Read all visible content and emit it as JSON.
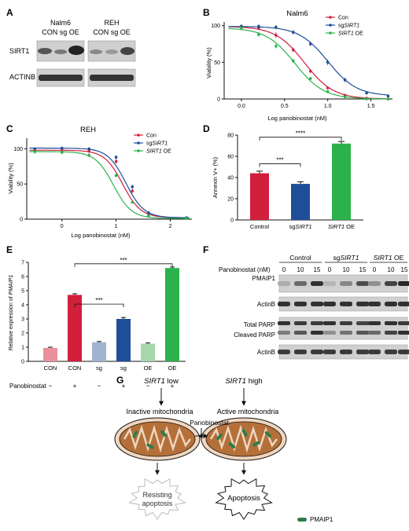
{
  "panels": {
    "A": {
      "letter": "A",
      "groups": [
        {
          "cell_line": "Nalm6",
          "lanes": "CON sg OE"
        },
        {
          "cell_line": "REH",
          "lanes": "CON sg OE"
        }
      ],
      "rows": [
        "SIRT1",
        "ACTINB"
      ]
    },
    "B": {
      "letter": "B"
    },
    "C": {
      "letter": "C"
    },
    "D": {
      "letter": "D"
    },
    "E": {
      "letter": "E"
    },
    "F": {
      "letter": "F",
      "treatment_label": "Panobinostat (nM)",
      "groups": [
        {
          "label": "Control",
          "italic_part": "",
          "suffix": ""
        },
        {
          "label": "sg",
          "italic_part": "SIRT1",
          "suffix": ""
        },
        {
          "label": "",
          "italic_part": "SIRT1",
          "suffix": " OE"
        }
      ],
      "doses": [
        "0",
        "10",
        "15",
        "0",
        "10",
        "15",
        "0",
        "10",
        "15"
      ],
      "rows": [
        "PMAIP1",
        "ActinB",
        "Total PARP",
        "Cleaved PARP",
        "ActinB"
      ]
    },
    "G": {
      "letter": "G",
      "left_top": {
        "italic": "SIRT1",
        "rest": " low"
      },
      "right_top": {
        "italic": "SIRT1",
        "rest": " high"
      },
      "left_state": "Inactive mitochondria",
      "right_state": "Active mitochondria",
      "center": "Panobinostat",
      "left_outcome_line1": "Resisting",
      "left_outcome_line2": "apoptosis",
      "right_outcome": "Apoptosis",
      "legend": "PMAIP1",
      "colors": {
        "mito_fill": "#b5703a",
        "mito_outer": "#f0d6bf",
        "pmaip1": "#2f7d4a"
      }
    }
  },
  "chart_data": [
    {
      "panel": "B",
      "type": "line",
      "title": "Nalm6",
      "xlabel": "Log panobinostat (nM)",
      "ylabel": "Viability (%)",
      "xlim": [
        -0.2,
        1.75
      ],
      "ylim": [
        0,
        105
      ],
      "xticks": [
        "0.0",
        "0.5",
        "1.0",
        "1.5"
      ],
      "yticks": [
        "0",
        "50",
        "100"
      ],
      "legend_position": "top-right",
      "series": [
        {
          "name": "Con",
          "italic_part": "",
          "suffix": "",
          "color": "#d21f3c",
          "x": [
            0.0,
            0.2,
            0.4,
            0.6,
            0.8,
            1.0,
            1.2,
            1.45,
            1.7
          ],
          "y": [
            99,
            97,
            87,
            67,
            38,
            15,
            5,
            1,
            0
          ],
          "err": [
            3,
            3,
            4,
            3,
            3,
            2,
            2,
            1,
            1
          ],
          "logec50": 0.73
        },
        {
          "name": "sg",
          "italic_part": "SIRT1",
          "suffix": "",
          "color": "#1f4e99",
          "x": [
            0.0,
            0.2,
            0.4,
            0.6,
            0.8,
            1.0,
            1.2,
            1.45,
            1.7
          ],
          "y": [
            99,
            99,
            98,
            91,
            75,
            50,
            26,
            8,
            4
          ],
          "err": [
            3,
            3,
            3,
            3,
            3,
            4,
            3,
            2,
            2
          ],
          "logec50": 1.0
        },
        {
          "name": "",
          "italic_part": "SIRT1",
          "suffix": " OE",
          "color": "#2bb24c",
          "x": [
            0.0,
            0.2,
            0.4,
            0.6,
            0.8,
            1.0,
            1.2,
            1.45,
            1.7
          ],
          "y": [
            97,
            88,
            72,
            52,
            28,
            10,
            3,
            0,
            0
          ],
          "err": [
            2,
            3,
            3,
            3,
            2,
            2,
            1,
            1,
            1
          ],
          "logec50": 0.62
        }
      ]
    },
    {
      "panel": "C",
      "type": "line",
      "title": "REH",
      "xlabel": "Log panobinostat (nM)",
      "ylabel": "Viability (%)",
      "xlim": [
        -0.65,
        2.4
      ],
      "ylim": [
        0,
        115
      ],
      "xticks": [
        "0",
        "1",
        "2"
      ],
      "yticks": [
        "0",
        "50",
        "100"
      ],
      "legend_position": "top-right",
      "series": [
        {
          "name": "Con",
          "italic_part": "",
          "suffix": "",
          "color": "#d21f3c",
          "x": [
            -0.5,
            0.0,
            0.5,
            1.0,
            1.3,
            1.6,
            2.3
          ],
          "y": [
            98,
            98,
            97,
            82,
            40,
            8,
            2
          ],
          "err": [
            2,
            2,
            3,
            3,
            3,
            2,
            1
          ],
          "logec50": 1.12
        },
        {
          "name": "sg",
          "italic_part": "SIRT1",
          "suffix": "",
          "color": "#1f4e99",
          "x": [
            -0.5,
            0.0,
            0.5,
            1.0,
            1.3,
            1.6,
            2.3
          ],
          "y": [
            100,
            101,
            100,
            88,
            46,
            9,
            2
          ],
          "err": [
            2,
            2,
            2,
            3,
            3,
            2,
            1
          ],
          "logec50": 1.18
        },
        {
          "name": "",
          "italic_part": "SIRT1",
          "suffix": " OE",
          "color": "#2bb24c",
          "x": [
            -0.5,
            0.0,
            0.5,
            1.0,
            1.3,
            1.6,
            2.3
          ],
          "y": [
            96,
            95,
            91,
            62,
            24,
            5,
            1
          ],
          "err": [
            3,
            3,
            3,
            2,
            2,
            1,
            1
          ],
          "logec50": 0.95
        }
      ]
    },
    {
      "panel": "D",
      "type": "bar",
      "ylabel": "Annexin V+ (%)",
      "ylim": [
        0,
        80
      ],
      "yticks": [
        "0",
        "20",
        "40",
        "60",
        "80"
      ],
      "categories": [
        {
          "label": "Control",
          "italic_part": "",
          "suffix": ""
        },
        {
          "label": "sg",
          "italic_part": "SIRT1",
          "suffix": ""
        },
        {
          "label": "",
          "italic_part": "SIRT1",
          "suffix": " OE"
        }
      ],
      "values": [
        44,
        34,
        72
      ],
      "errors": [
        2,
        2,
        2
      ],
      "colors": [
        "#d21f3c",
        "#1f4e99",
        "#2bb24c"
      ],
      "significance": [
        {
          "from": 0,
          "to": 1,
          "stars": "***"
        },
        {
          "from": 0,
          "to": 2,
          "stars": "****"
        }
      ]
    },
    {
      "panel": "E",
      "type": "bar",
      "ylabel": "Relative expression of PMAIP1",
      "ylabel_plain": "Relative expression of ",
      "ylabel_italic": "PMAIP1",
      "ylim": [
        0,
        7
      ],
      "yticks": [
        "0",
        "1",
        "2",
        "3",
        "4",
        "5",
        "6",
        "7"
      ],
      "categories": [
        "CON",
        "CON",
        "sg",
        "sg",
        "OE",
        "OE"
      ],
      "values": [
        0.95,
        4.7,
        1.35,
        3.0,
        1.25,
        6.6
      ],
      "errors": [
        0.05,
        0.08,
        0.05,
        0.1,
        0.05,
        0.07
      ],
      "colors": [
        "#e8919c",
        "#d21f3c",
        "#a0b4cf",
        "#1f4e99",
        "#a8d7ae",
        "#2bb24c"
      ],
      "treatment_label": "Panobinostat",
      "treatment": [
        "−",
        "+",
        "−",
        "+",
        "−",
        "+"
      ],
      "significance": [
        {
          "from": 1,
          "to": 3,
          "stars": "***"
        },
        {
          "from": 1,
          "to": 5,
          "stars": "***"
        }
      ]
    }
  ]
}
